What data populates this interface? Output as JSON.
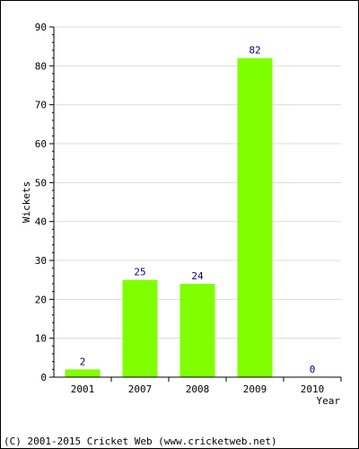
{
  "chart_data": {
    "type": "bar",
    "categories": [
      "2001",
      "2007",
      "2008",
      "2009",
      "2010"
    ],
    "values": [
      2,
      25,
      24,
      82,
      0
    ],
    "data_labels": [
      "2",
      "25",
      "24",
      "82",
      "0"
    ],
    "xlabel": "Year",
    "ylabel": "Wickets",
    "ylim": [
      0,
      90
    ],
    "yticks": [
      0,
      10,
      20,
      30,
      40,
      50,
      60,
      70,
      80,
      90
    ],
    "grid": true,
    "legend": "none",
    "colors": {
      "bar": "#80ff00",
      "data_label": "#000080",
      "grid": "#dcdcdc",
      "axis": "#000000"
    }
  },
  "footer": {
    "copyright": "(C) 2001-2015 Cricket Web (www.cricketweb.net)"
  }
}
